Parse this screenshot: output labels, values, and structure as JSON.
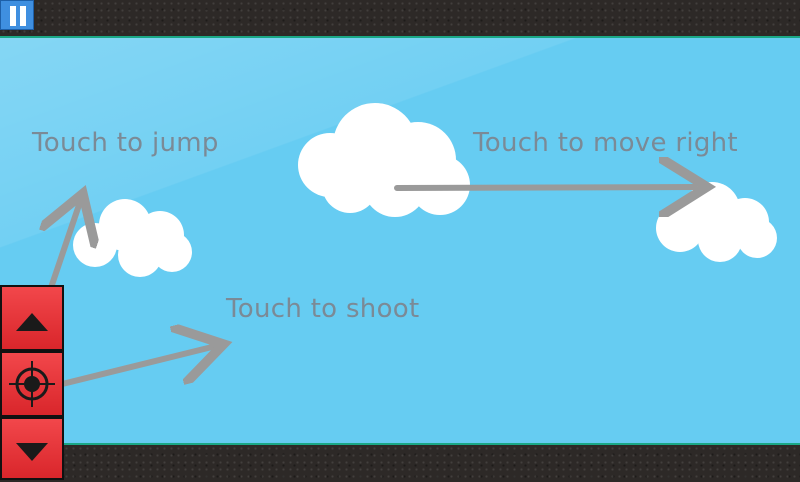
{
  "hints": {
    "jump": "Touch to jump",
    "move_right": "Touch to move right",
    "shoot": "Touch to shoot"
  },
  "controls": {
    "pause_icon": "pause-icon",
    "jump_icon": "up-triangle-icon",
    "shoot_icon": "crosshair-icon",
    "down_icon": "down-triangle-icon"
  },
  "colors": {
    "sky": "#66ccf2",
    "button_red": "#e5333a",
    "hint_text": "#7b8a96",
    "arrow": "#9a9a9a"
  }
}
